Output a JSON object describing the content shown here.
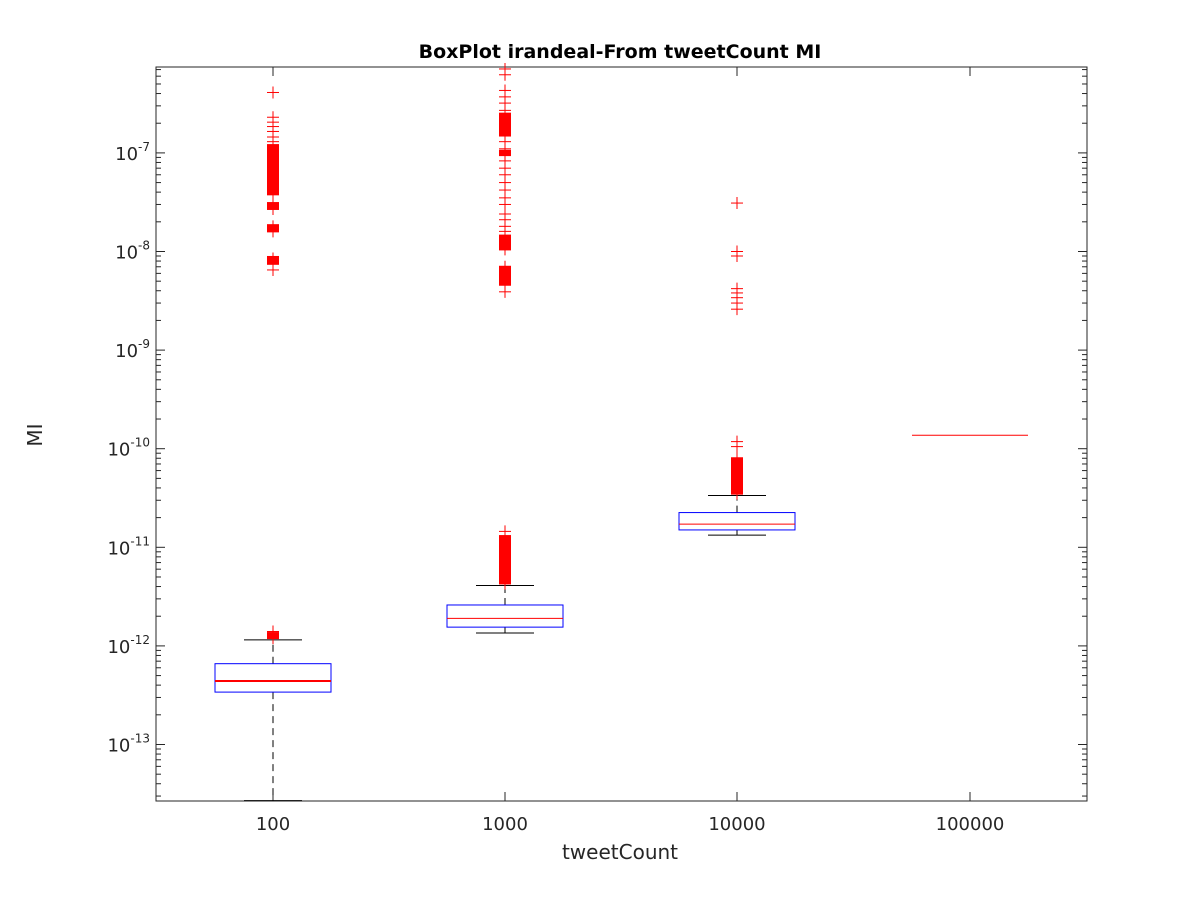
{
  "chart_data": {
    "type": "boxplot",
    "title": "BoxPlot irandeal-From tweetCount MI",
    "xlabel": "tweetCount",
    "ylabel": "MI",
    "categories": [
      "100",
      "1000",
      "10000",
      "100000"
    ],
    "y_scale": "log",
    "ylim": [
      2.6e-14,
      7.5e-07
    ],
    "y_ticks": [
      {
        "value": 1e-13,
        "base": "10",
        "exp": "-13"
      },
      {
        "value": 1e-12,
        "base": "10",
        "exp": "-12"
      },
      {
        "value": 1e-11,
        "base": "10",
        "exp": "-11"
      },
      {
        "value": 1e-10,
        "base": "10",
        "exp": "-10"
      },
      {
        "value": 1e-09,
        "base": "10",
        "exp": "-9"
      },
      {
        "value": 1e-08,
        "base": "10",
        "exp": "-8"
      },
      {
        "value": 1e-07,
        "base": "10",
        "exp": "-7"
      }
    ],
    "grid": false,
    "colors": {
      "box": "#0000ff",
      "median": "#ff0000",
      "whisker": "#000000",
      "outlier": "#ff0000"
    },
    "boxes": [
      {
        "category": "100",
        "whisker_low": 2.7e-14,
        "q1": 3.4e-13,
        "median": 4.4e-13,
        "q3": 6.6e-13,
        "whisker_high": 1.15e-12,
        "outliers": [
          1.2e-12,
          1.25e-12,
          1.3e-12,
          1.35e-12,
          1.4e-12,
          6.5e-09,
          7.5e-09,
          8e-09,
          8.5e-09,
          1.6e-08,
          1.7e-08,
          1.8e-08,
          2.7e-08,
          2.9e-08,
          3.1e-08,
          3.8e-08,
          4.3e-08,
          5e-08,
          5.5e-08,
          6e-08,
          6.8e-08,
          7.5e-08,
          8.5e-08,
          9.5e-08,
          1.05e-07,
          1.15e-07,
          1.3e-07,
          1.45e-07,
          1.65e-07,
          1.85e-07,
          2.05e-07,
          2.3e-07,
          4.1e-07
        ]
      },
      {
        "category": "1000",
        "whisker_low": 1.35e-12,
        "q1": 1.55e-12,
        "median": 1.9e-12,
        "q3": 2.6e-12,
        "whisker_high": 4.1e-12,
        "outliers": [
          4.3e-12,
          5e-12,
          5.8e-12,
          6.5e-12,
          7.3e-12,
          8.2e-12,
          9.2e-12,
          1.05e-11,
          1.15e-11,
          1.3e-11,
          1.45e-11,
          3.9e-09,
          4.6e-09,
          5.2e-09,
          5.8e-09,
          6.5e-09,
          7e-09,
          1.05e-08,
          1.2e-08,
          1.4e-08,
          1.6e-08,
          1.8e-08,
          2.1e-08,
          2.4e-08,
          3e-08,
          3.5e-08,
          4.2e-08,
          5e-08,
          6e-08,
          7e-08,
          8.3e-08,
          9.5e-08,
          1.1e-07,
          1.3e-07,
          1.5e-07,
          1.7e-07,
          1.9e-07,
          2.1e-07,
          2.4e-07,
          2.7e-07,
          3.2e-07,
          3.7e-07,
          4.3e-07,
          6.2e-07,
          7.1e-07
        ]
      },
      {
        "category": "10000",
        "whisker_low": 1.33e-11,
        "q1": 1.5e-11,
        "median": 1.72e-11,
        "q3": 2.25e-11,
        "whisker_high": 3.35e-11,
        "outliers": [
          3.5e-11,
          3.9e-11,
          4.3e-11,
          4.8e-11,
          5.3e-11,
          5.9e-11,
          6.6e-11,
          7.3e-11,
          8e-11,
          1.05e-10,
          1.18e-10,
          2.6e-09,
          3e-09,
          3.4e-09,
          3.8e-09,
          4.2e-09,
          9e-09,
          1e-08,
          3.1e-08
        ]
      },
      {
        "category": "100000",
        "whisker_low": 1.37e-10,
        "q1": 1.37e-10,
        "median": 1.37e-10,
        "q3": 1.37e-10,
        "whisker_high": 1.37e-10,
        "outliers": []
      }
    ]
  }
}
